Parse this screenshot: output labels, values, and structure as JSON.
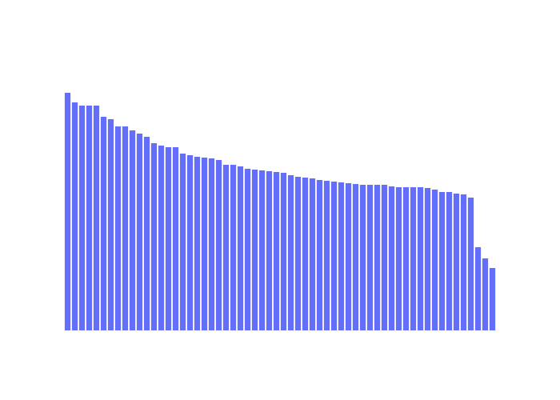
{
  "chart_data": {
    "type": "bar",
    "x": [
      1,
      2,
      3,
      4,
      5,
      6,
      7,
      8,
      9,
      10,
      11,
      12,
      13,
      14,
      15,
      16,
      17,
      18,
      19,
      20,
      21,
      22,
      23,
      24,
      25,
      26,
      27,
      28,
      29,
      30,
      31,
      32,
      33,
      34,
      35,
      36,
      37,
      38,
      39,
      40,
      41,
      42,
      43,
      44,
      45,
      46,
      47,
      48,
      49,
      50,
      51,
      52,
      53,
      54,
      55,
      56,
      57,
      58,
      59,
      60
    ],
    "values": [
      297,
      285,
      281,
      281,
      281,
      267,
      264,
      255,
      255,
      250,
      246,
      242,
      234,
      231,
      229,
      229,
      221,
      219,
      217,
      216,
      215,
      213,
      207,
      207,
      205,
      202,
      201,
      200,
      199,
      198,
      197,
      194,
      192,
      191,
      190,
      188,
      187,
      186,
      185,
      184,
      183,
      182,
      182,
      182,
      182,
      180,
      179,
      179,
      179,
      179,
      178,
      176,
      173,
      173,
      171,
      170,
      166,
      104,
      90,
      78
    ],
    "bar_color": "#636efa",
    "title": "",
    "xlabel": "",
    "ylabel": "",
    "ylim": [
      0,
      313
    ],
    "grid": false,
    "legend": "none",
    "axis_tick_labels_visible": false
  }
}
